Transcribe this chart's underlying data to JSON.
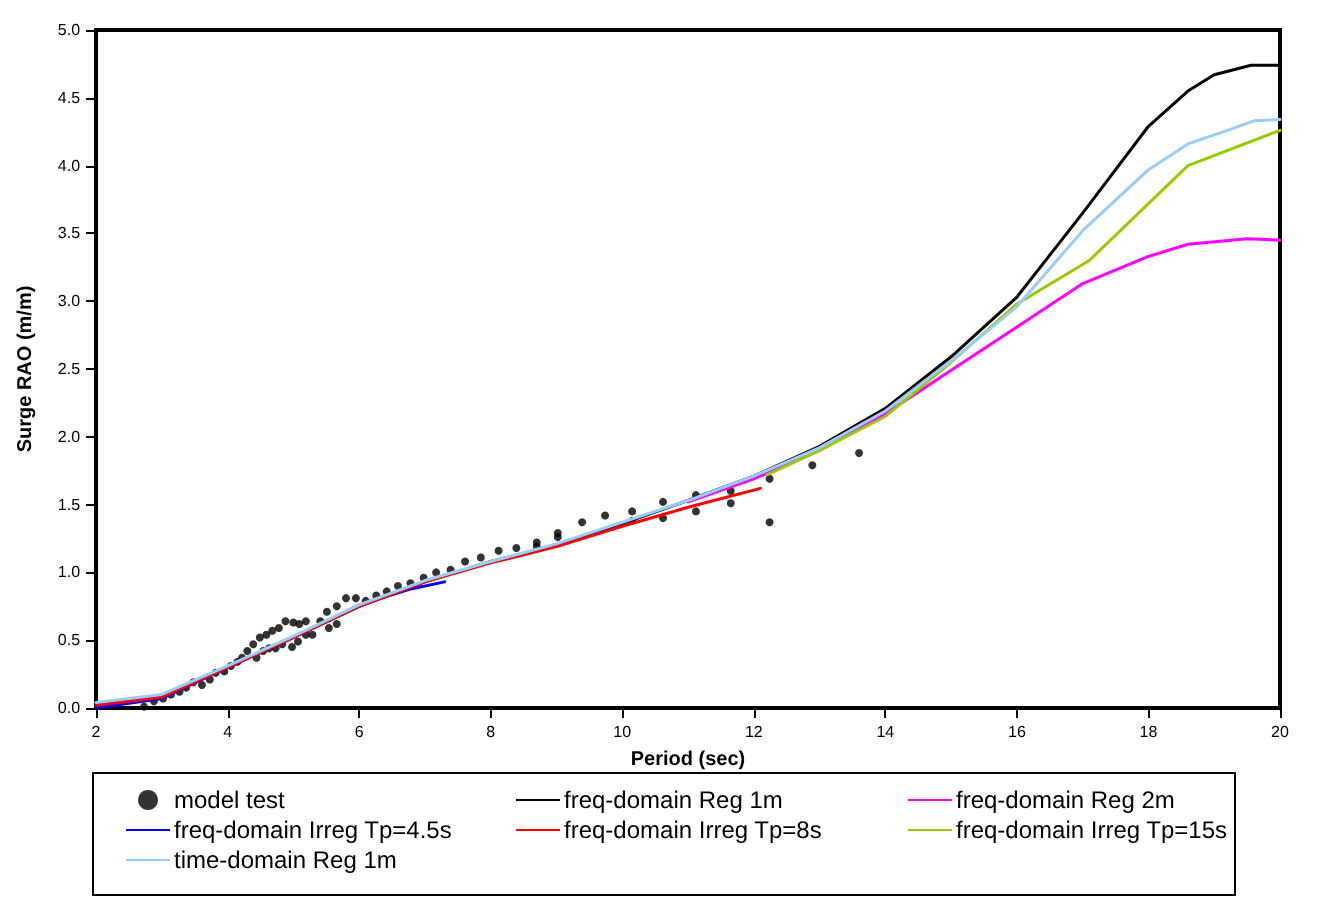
{
  "chart_data": {
    "type": "line",
    "xlabel": "Period (sec)",
    "ylabel": "Surge RAO (m/m)",
    "xlim": [
      2,
      20
    ],
    "xticks": [
      2,
      4,
      6,
      8,
      10,
      12,
      14,
      16,
      18,
      20
    ],
    "ylim": [
      0,
      5
    ],
    "yticks": [
      {
        "value": 0,
        "label": "0.0"
      },
      {
        "value": 0.5,
        "label": "0.5"
      },
      {
        "value": 1,
        "label": "1.0"
      },
      {
        "value": 1.5,
        "label": "1.5"
      },
      {
        "value": 2,
        "label": "2.0"
      },
      {
        "value": 2.5,
        "label": "2.5"
      },
      {
        "value": 3,
        "label": "3.0"
      },
      {
        "value": 3.5,
        "label": "3.5"
      },
      {
        "value": 4,
        "label": "4.0"
      },
      {
        "value": 4.5,
        "label": "4.5"
      },
      {
        "value": 5,
        "label": "5.0"
      }
    ],
    "grid": false,
    "legend": "bottom",
    "marker": "none",
    "line_style": "solid",
    "series": [
      {
        "name": "model test",
        "type": "scatter",
        "marker": "circle",
        "color": "#000000",
        "x": [
          2.73,
          2.88,
          3.02,
          3.14,
          3.27,
          3.37,
          3.48,
          3.61,
          3.73,
          3.82,
          3.95,
          4.05,
          4.15,
          4.22,
          4.3,
          4.39,
          4.49,
          4.59,
          4.68,
          4.78,
          4.88,
          5.0,
          5.09,
          5.19,
          4.44,
          4.54,
          4.63,
          4.73,
          4.83,
          4.98,
          5.07,
          5.19,
          5.29,
          5.41,
          5.51,
          5.54,
          5.66,
          5.66,
          5.8,
          5.95,
          6.1,
          6.26,
          6.42,
          6.59,
          6.78,
          6.98,
          7.17,
          7.39,
          7.61,
          7.85,
          8.12,
          8.39,
          8.7,
          8.7,
          9.02,
          9.02,
          9.39,
          9.74,
          10.15,
          10.15,
          10.62,
          10.62,
          11.12,
          11.12,
          11.65,
          11.65,
          12.24,
          12.24,
          12.89,
          13.6
        ],
        "values": [
          0.01,
          0.05,
          0.07,
          0.1,
          0.12,
          0.15,
          0.19,
          0.17,
          0.21,
          0.26,
          0.27,
          0.31,
          0.34,
          0.37,
          0.42,
          0.47,
          0.52,
          0.54,
          0.57,
          0.59,
          0.64,
          0.63,
          0.62,
          0.64,
          0.37,
          0.42,
          0.44,
          0.44,
          0.47,
          0.45,
          0.49,
          0.54,
          0.54,
          0.64,
          0.71,
          0.59,
          0.62,
          0.75,
          0.81,
          0.81,
          0.79,
          0.83,
          0.86,
          0.9,
          0.92,
          0.96,
          1.0,
          1.02,
          1.08,
          1.11,
          1.16,
          1.18,
          1.22,
          1.19,
          1.29,
          1.26,
          1.37,
          1.42,
          1.45,
          1.38,
          1.52,
          1.4,
          1.57,
          1.45,
          1.6,
          1.51,
          1.69,
          1.37,
          1.79,
          1.88
        ]
      },
      {
        "name": "freq-domain Reg 1m",
        "color": "#000000",
        "x": [
          2,
          3,
          4,
          5,
          6,
          7,
          8,
          9,
          10,
          11,
          12,
          13,
          14,
          15,
          16,
          17,
          18,
          18.6,
          19,
          19.56,
          20
        ],
        "values": [
          0.02,
          0.08,
          0.3,
          0.52,
          0.75,
          0.93,
          1.08,
          1.2,
          1.36,
          1.53,
          1.71,
          1.93,
          2.21,
          2.59,
          3.03,
          3.65,
          4.29,
          4.55,
          4.67,
          4.74,
          4.74
        ]
      },
      {
        "name": "freq-domain Reg 2m",
        "color": "#ff00ff",
        "x": [
          11,
          12,
          13,
          14,
          15,
          16,
          17,
          18,
          18.6,
          19.5,
          20
        ],
        "values": [
          1.52,
          1.69,
          1.9,
          2.17,
          2.49,
          2.81,
          3.13,
          3.33,
          3.42,
          3.46,
          3.45
        ]
      },
      {
        "name": "freq-domain Irreg Tp=4.5s",
        "color": "#0000ff",
        "x": [
          2,
          3,
          4,
          5,
          6,
          6.8,
          7.3
        ],
        "values": [
          0.0,
          0.07,
          0.3,
          0.52,
          0.76,
          0.88,
          0.93
        ]
      },
      {
        "name": "freq-domain Irreg Tp=8s",
        "color": "#ff0000",
        "x": [
          2,
          3,
          4,
          5,
          6,
          7,
          8,
          9,
          10,
          11,
          12.1
        ],
        "values": [
          0.02,
          0.08,
          0.3,
          0.52,
          0.75,
          0.93,
          1.07,
          1.19,
          1.34,
          1.48,
          1.62
        ]
      },
      {
        "name": "freq-domain Irreg Tp=15s",
        "color": "#99cc00",
        "x": [
          12.2,
          13,
          14,
          15,
          16,
          17.1,
          18.6,
          20
        ],
        "values": [
          1.72,
          1.9,
          2.15,
          2.55,
          2.98,
          3.3,
          4.0,
          4.26
        ]
      },
      {
        "name": "time-domain Reg 1m",
        "color": "#99ccff",
        "x": [
          2,
          3,
          4,
          5,
          6,
          7,
          8,
          9,
          10,
          11,
          12,
          13,
          14,
          15,
          16,
          17,
          18,
          18.6,
          19.2,
          19.6,
          20
        ],
        "values": [
          0.04,
          0.1,
          0.31,
          0.53,
          0.76,
          0.94,
          1.08,
          1.21,
          1.37,
          1.53,
          1.71,
          1.92,
          2.19,
          2.56,
          2.96,
          3.52,
          3.97,
          4.16,
          4.26,
          4.33,
          4.34
        ]
      }
    ]
  }
}
